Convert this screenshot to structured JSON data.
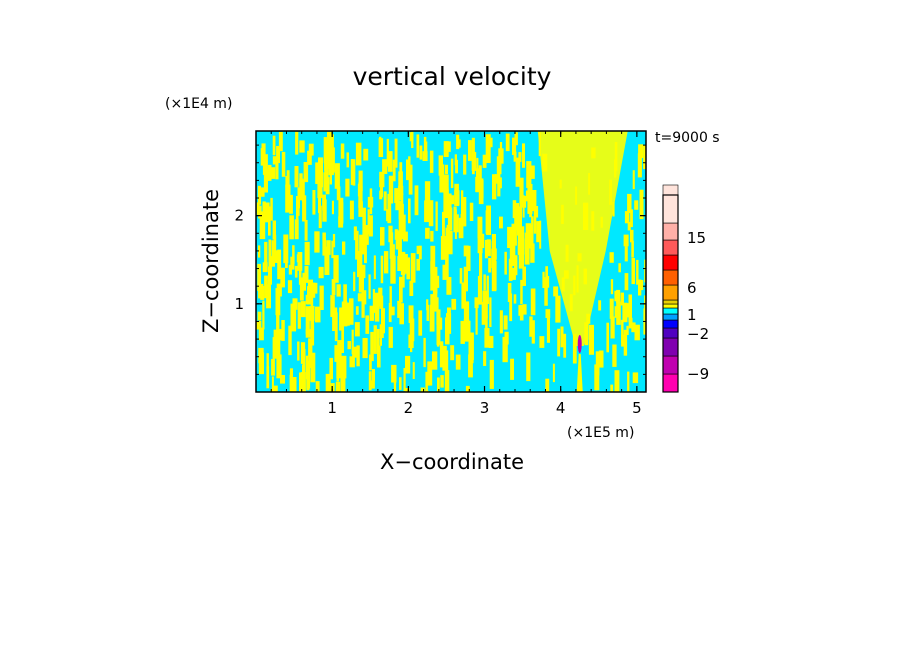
{
  "chart_data": {
    "type": "heatmap",
    "title": "vertical velocity",
    "xlabel": "X−coordinate",
    "ylabel": "Z−coordinate",
    "x_unit": "(×1E5 m)",
    "y_unit": "(×1E4 m)",
    "time_label": "t=9000 s",
    "x_ticks": [
      "1",
      "2",
      "3",
      "4",
      "5"
    ],
    "y_ticks": [
      "1",
      "2"
    ],
    "x_tick_values": [
      1,
      2,
      3,
      4,
      5
    ],
    "y_tick_values": [
      1,
      2
    ],
    "xlim": [
      0,
      5.12
    ],
    "ylim": [
      0,
      2.96
    ],
    "colorbar": {
      "tick_labels": [
        "15",
        "6",
        "1",
        "−2",
        "−9"
      ],
      "tick_values": [
        15,
        6,
        1,
        -2,
        -9
      ],
      "levels": [
        {
          "color": "#ff00b0"
        },
        {
          "color": "#c000b0"
        },
        {
          "color": "#8000b0"
        },
        {
          "color": "#5000c0"
        },
        {
          "color": "#0000ff"
        },
        {
          "color": "#00a0ff"
        },
        {
          "color": "#00ffff"
        },
        {
          "color": "#ffff00"
        },
        {
          "color": "#e8d000"
        },
        {
          "color": "#ffa000"
        },
        {
          "color": "#ff6000"
        },
        {
          "color": "#ff0000"
        },
        {
          "color": "#ff5a5a"
        },
        {
          "color": "#ffb0a8"
        },
        {
          "color": "#ffe4dc"
        }
      ]
    },
    "field_colors": {
      "positive": "#ffff00",
      "negative": "#00e8ff",
      "updraft_core": "#c000b0"
    },
    "updraft_center_x": 4.25,
    "grid": false,
    "legend": "right"
  }
}
